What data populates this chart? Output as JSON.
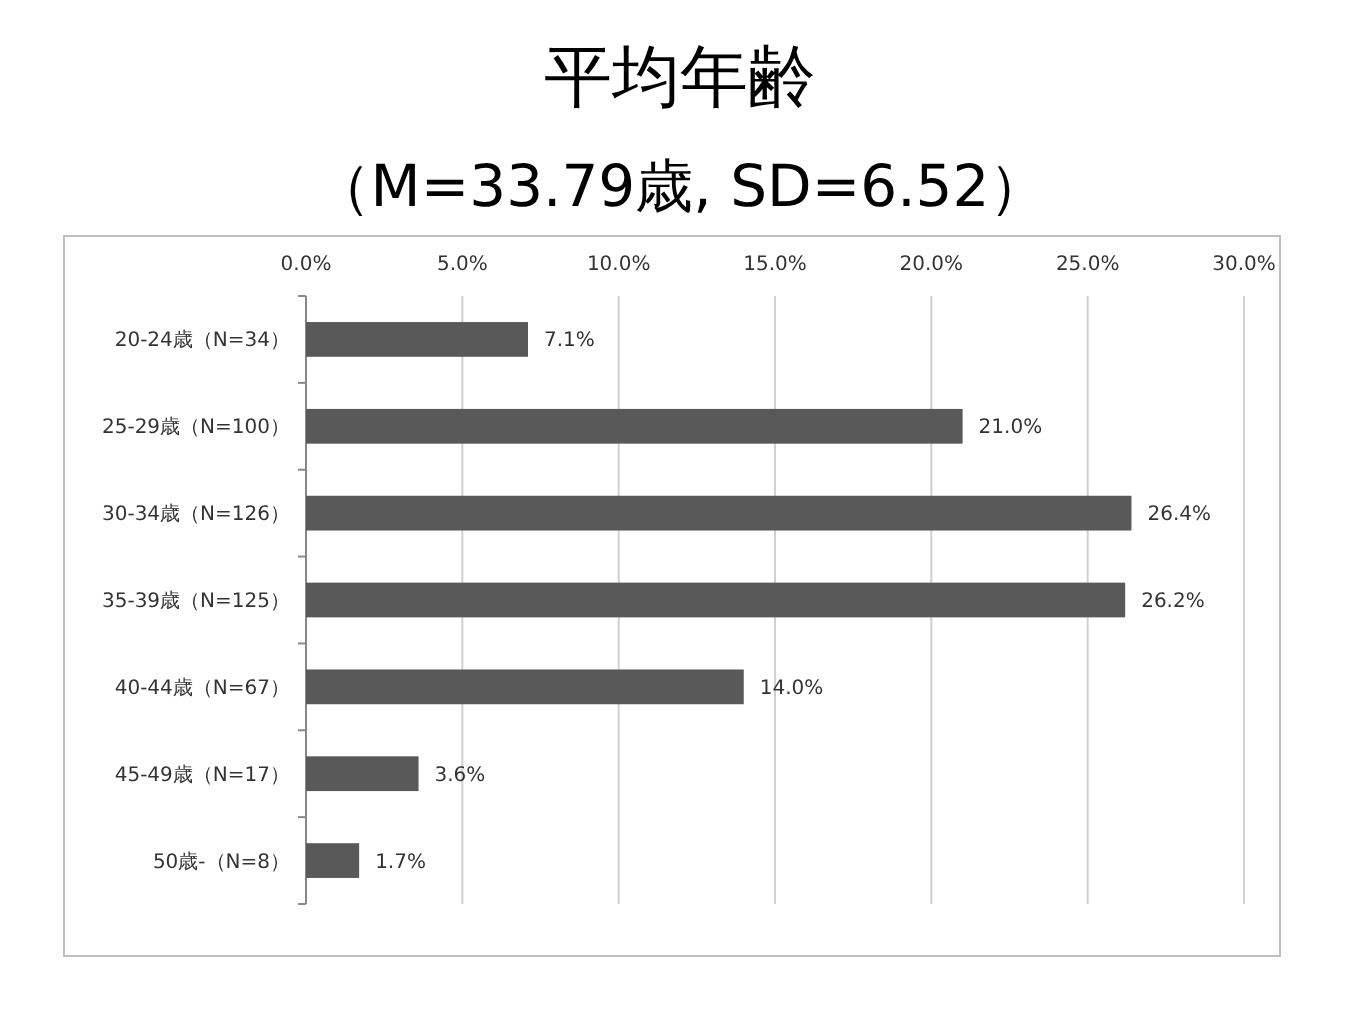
{
  "chart_data": {
    "type": "bar",
    "orientation": "horizontal",
    "title": "平均年齢",
    "subtitle": "（M=33.79歳, SD=6.52）",
    "categories": [
      "20-24歳（N=34）",
      "25-29歳（N=100）",
      "30-34歳（N=126）",
      "35-39歳（N=125）",
      "40-44歳（N=67）",
      "45-49歳（N=17）",
      "50歳-（N=8）"
    ],
    "values": [
      7.1,
      21.0,
      26.4,
      26.2,
      14.0,
      3.6,
      1.7
    ],
    "value_labels": [
      "7.1%",
      "21.0%",
      "26.4%",
      "26.2%",
      "14.0%",
      "3.6%",
      "1.7%"
    ],
    "color": "#595959",
    "xlim": [
      0,
      30
    ],
    "xticks": [
      {
        "value": 0,
        "label": "0.0%"
      },
      {
        "value": 5,
        "label": "5.0%"
      },
      {
        "value": 10,
        "label": "10.0%"
      },
      {
        "value": 15,
        "label": "15.0%"
      },
      {
        "value": 20,
        "label": "20.0%"
      },
      {
        "value": 25,
        "label": "25.0%"
      },
      {
        "value": 30,
        "label": "30.0%"
      }
    ],
    "grid": "x"
  }
}
